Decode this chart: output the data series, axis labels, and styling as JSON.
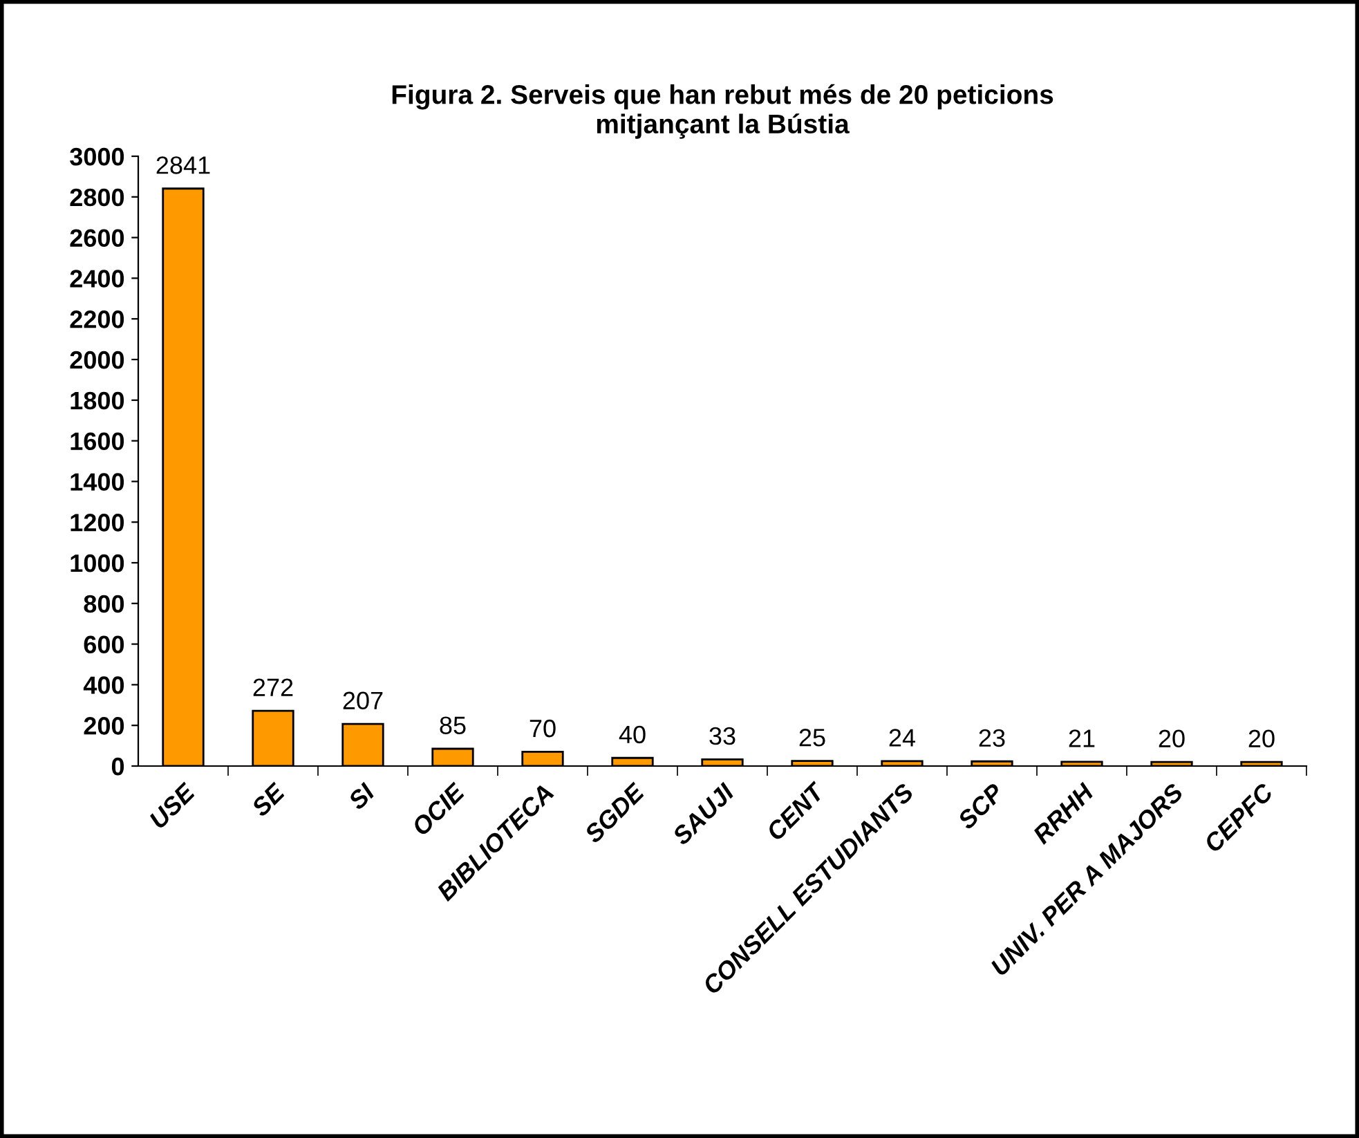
{
  "chart_data": {
    "type": "bar",
    "title": "Figura 2. Serveis que han rebut més de 20 peticions\nmitjançant la Bústia",
    "categories": [
      "USE",
      "SE",
      "SI",
      "OCIE",
      "BIBLIOTECA",
      "SGDE",
      "SAUJI",
      "CENT",
      "CONSELL ESTUDIANTS",
      "SCP",
      "RRHH",
      "UNIV. PER A MAJORS",
      "CEPFC"
    ],
    "values": [
      2841,
      272,
      207,
      85,
      70,
      40,
      33,
      25,
      24,
      23,
      21,
      20,
      20
    ],
    "color": "#ff9900",
    "ylim": [
      0,
      3000
    ],
    "yticks": [
      0,
      200,
      400,
      600,
      800,
      1000,
      1200,
      1400,
      1600,
      1800,
      2000,
      2200,
      2400,
      2600,
      2800,
      3000
    ],
    "data_labels": true,
    "grid": false
  }
}
